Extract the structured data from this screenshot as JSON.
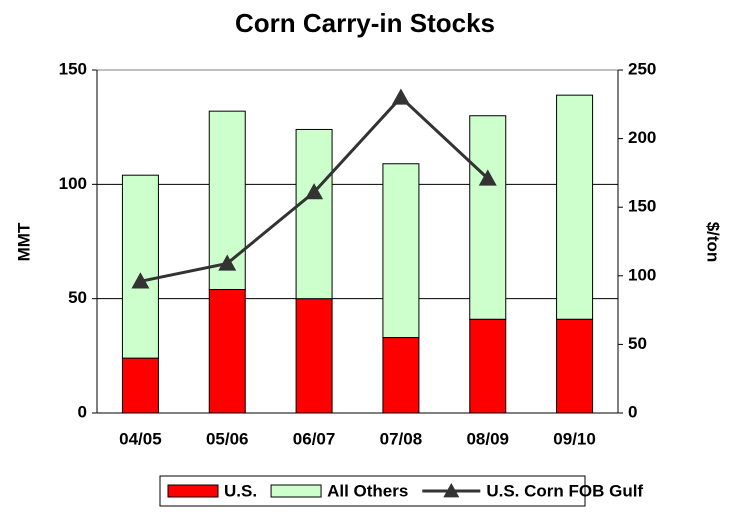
{
  "chart_data": {
    "type": "bar",
    "title": "Corn Carry-in Stocks",
    "categories": [
      "04/05",
      "05/06",
      "06/07",
      "07/08",
      "08/09",
      "09/10"
    ],
    "series": [
      {
        "name": "U.S.",
        "color": "#ff0000",
        "values": [
          24,
          54,
          50,
          33,
          41,
          41
        ]
      },
      {
        "name": "All Others",
        "color": "#ccffcc",
        "values": [
          80,
          78,
          74,
          76,
          89,
          98
        ]
      },
      {
        "name": "U.S. Corn FOB Gulf",
        "color": "#333333",
        "type": "line",
        "axis": "y2",
        "values": [
          96,
          109,
          161,
          230,
          171,
          null
        ]
      }
    ],
    "stacked": true,
    "ylabel": "MMT",
    "y2label": "$/ton",
    "ylim": [
      0,
      150
    ],
    "yticks": [
      0,
      50,
      100,
      150
    ],
    "y2lim": [
      0,
      250
    ],
    "y2ticks": [
      0,
      50,
      100,
      150,
      200,
      250
    ],
    "grid": true,
    "legend": "bottom"
  }
}
